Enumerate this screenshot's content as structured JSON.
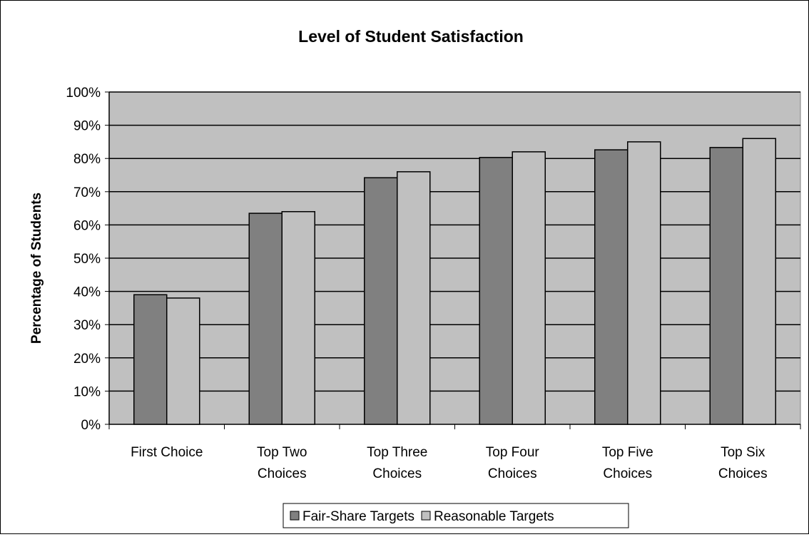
{
  "chart_data": {
    "type": "bar",
    "title": "Level of Student Satisfaction",
    "xlabel": "",
    "ylabel": "Percentage of Students",
    "categories": [
      [
        "First Choice"
      ],
      [
        "Top Two",
        "Choices"
      ],
      [
        "Top Three",
        "Choices"
      ],
      [
        "Top Four",
        "Choices"
      ],
      [
        "Top Five",
        "Choices"
      ],
      [
        "Top Six",
        "Choices"
      ]
    ],
    "series": [
      {
        "name": "Fair-Share Targets",
        "values": [
          0.39,
          0.635,
          0.742,
          0.803,
          0.826,
          0.833
        ],
        "color": "#808080"
      },
      {
        "name": "Reasonable Targets",
        "values": [
          0.38,
          0.64,
          0.76,
          0.82,
          0.85,
          0.86
        ],
        "color": "#c0c0c0"
      }
    ],
    "ylim": [
      0,
      1
    ],
    "yticks": [
      "0%",
      "10%",
      "20%",
      "30%",
      "40%",
      "50%",
      "60%",
      "70%",
      "80%",
      "90%",
      "100%"
    ],
    "grid": true,
    "legend_position": "bottom",
    "plot_background": "#c0c0c0"
  }
}
